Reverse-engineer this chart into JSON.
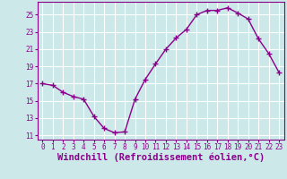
{
  "x": [
    0,
    1,
    2,
    3,
    4,
    5,
    6,
    7,
    8,
    9,
    10,
    11,
    12,
    13,
    14,
    15,
    16,
    17,
    18,
    19,
    20,
    21,
    22,
    23
  ],
  "y": [
    17.0,
    16.8,
    16.0,
    15.5,
    15.2,
    13.2,
    11.8,
    11.3,
    11.4,
    15.2,
    17.5,
    19.3,
    21.0,
    22.3,
    23.3,
    25.0,
    25.5,
    25.5,
    25.8,
    25.2,
    24.5,
    22.2,
    20.5,
    18.3
  ],
  "line_color": "#8b008b",
  "marker": "+",
  "marker_size": 4,
  "marker_linewidth": 1.0,
  "xlabel": "Windchill (Refroidissement éolien,°C)",
  "xlabel_fontsize": 7.5,
  "background_color": "#cce8e8",
  "grid_color": "#ffffff",
  "tick_color": "#8b008b",
  "label_color": "#8b008b",
  "ylim": [
    10.5,
    26.5
  ],
  "yticks": [
    11,
    13,
    15,
    17,
    19,
    21,
    23,
    25
  ],
  "xlim": [
    -0.5,
    23.5
  ],
  "xticks": [
    0,
    1,
    2,
    3,
    4,
    5,
    6,
    7,
    8,
    9,
    10,
    11,
    12,
    13,
    14,
    15,
    16,
    17,
    18,
    19,
    20,
    21,
    22,
    23
  ]
}
